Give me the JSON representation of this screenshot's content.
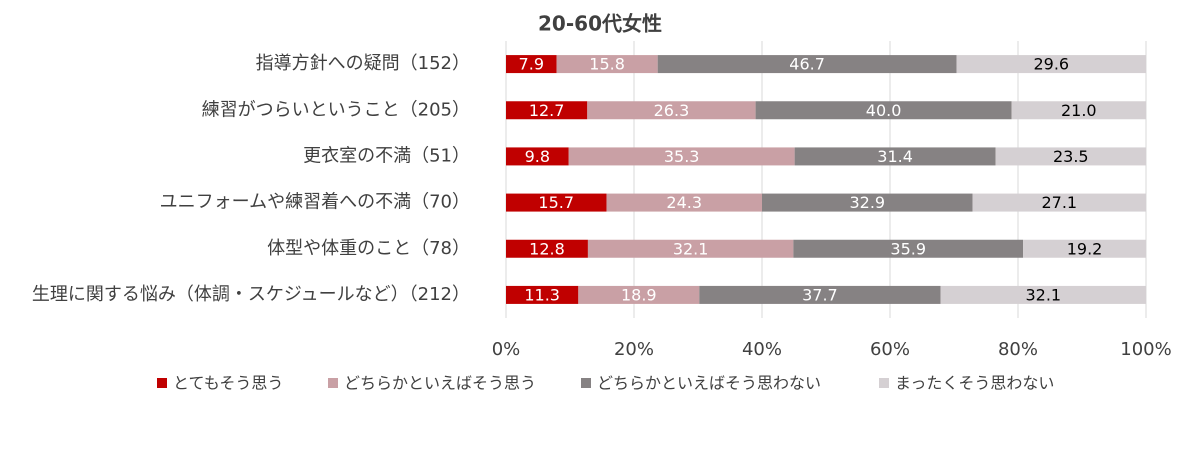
{
  "chart_data": {
    "type": "stacked-bar-horizontal",
    "title": "20-60代女性",
    "categories": [
      "指導方針への疑問（152）",
      "練習がつらいということ（205）",
      "更衣室の不満（51）",
      "ユニフォームや練習着への不満（70）",
      "体型や体重のこと（78）",
      "生理に関する悩み（体調・スケジュールなど）（212）"
    ],
    "series": [
      {
        "name": "とてもそう思う",
        "color": "#c00000",
        "label_color": "#ffffff",
        "values": [
          7.9,
          12.7,
          9.8,
          15.7,
          12.8,
          11.3
        ],
        "value_labels": [
          "7.9",
          "12.7",
          "9.8",
          "15.7",
          "12.8",
          "11.3"
        ]
      },
      {
        "name": "どちらかといえばそう思う",
        "color": "#c9a0a5",
        "label_color": "#ffffff",
        "values": [
          15.8,
          26.3,
          35.3,
          24.3,
          32.1,
          18.9
        ],
        "value_labels": [
          "15.8",
          "26.3",
          "35.3",
          "24.3",
          "32.1",
          "18.9"
        ]
      },
      {
        "name": "どちらかといえばそう思わない",
        "color": "#868283",
        "label_color": "#ffffff",
        "values": [
          46.7,
          40,
          31.4,
          32.9,
          35.9,
          37.7
        ],
        "value_labels": [
          "46.7",
          "40.0",
          "31.4",
          "32.9",
          "35.9",
          "37.7"
        ]
      },
      {
        "name": "まったくそう思わない",
        "color": "#d5d0d3",
        "label_color": "#000000",
        "values": [
          29.6,
          21,
          23.5,
          27.1,
          19.2,
          32.1
        ],
        "value_labels": [
          "29.6",
          "21.0",
          "23.5",
          "27.1",
          "19.2",
          "32.1"
        ]
      }
    ],
    "xlim": [
      0,
      100
    ],
    "xticks": [
      {
        "value": 0,
        "label": "0%"
      },
      {
        "value": 20,
        "label": "20%"
      },
      {
        "value": 40,
        "label": "40%"
      },
      {
        "value": 60,
        "label": "60%"
      },
      {
        "value": 80,
        "label": "80%"
      },
      {
        "value": 100,
        "label": "100%"
      }
    ],
    "grid": true,
    "legend": "bottom"
  }
}
